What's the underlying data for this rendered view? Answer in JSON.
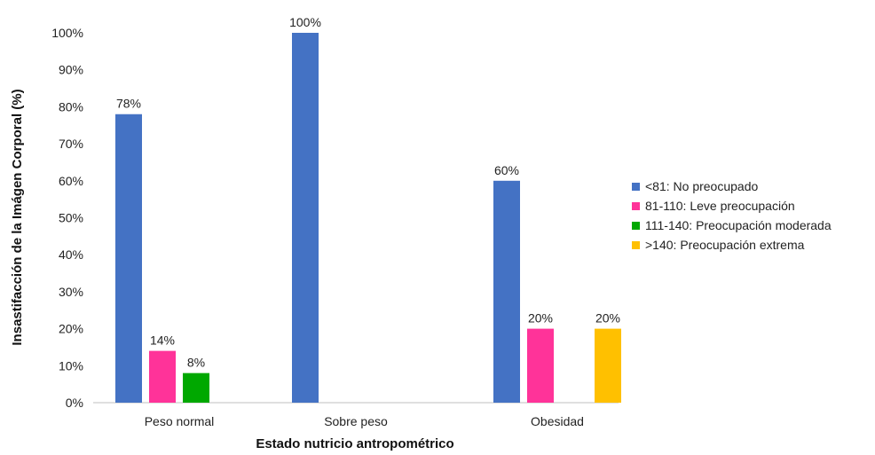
{
  "chart_data": {
    "type": "bar",
    "categories": [
      "Peso normal",
      "Sobre peso",
      "Obesidad"
    ],
    "series": [
      {
        "name": "<81: No preocupado",
        "color": "#4472C4",
        "values": [
          78,
          100,
          60
        ],
        "labels": [
          "78%",
          "100%",
          "60%"
        ]
      },
      {
        "name": "81-110: Leve preocupación",
        "color": "#FF3399",
        "values": [
          14,
          0,
          20
        ],
        "labels": [
          "14%",
          "",
          "20%"
        ]
      },
      {
        "name": "111-140: Preocupación moderada",
        "color": "#00A800",
        "values": [
          8,
          0,
          0
        ],
        "labels": [
          "8%",
          "",
          ""
        ]
      },
      {
        "name": ">140: Preocupación extrema",
        "color": "#FFC000",
        "values": [
          0,
          0,
          20
        ],
        "labels": [
          "",
          "",
          "20%"
        ]
      }
    ],
    "xlabel": "Estado nutricio antropométrico",
    "ylabel": "Insastifacción de la Imágen Corporal (%)",
    "ylim": [
      0,
      100
    ],
    "yticks": [
      "0%",
      "10%",
      "20%",
      "30%",
      "40%",
      "50%",
      "60%",
      "70%",
      "80%",
      "90%",
      "100%"
    ],
    "grid": false,
    "legend": "right"
  }
}
